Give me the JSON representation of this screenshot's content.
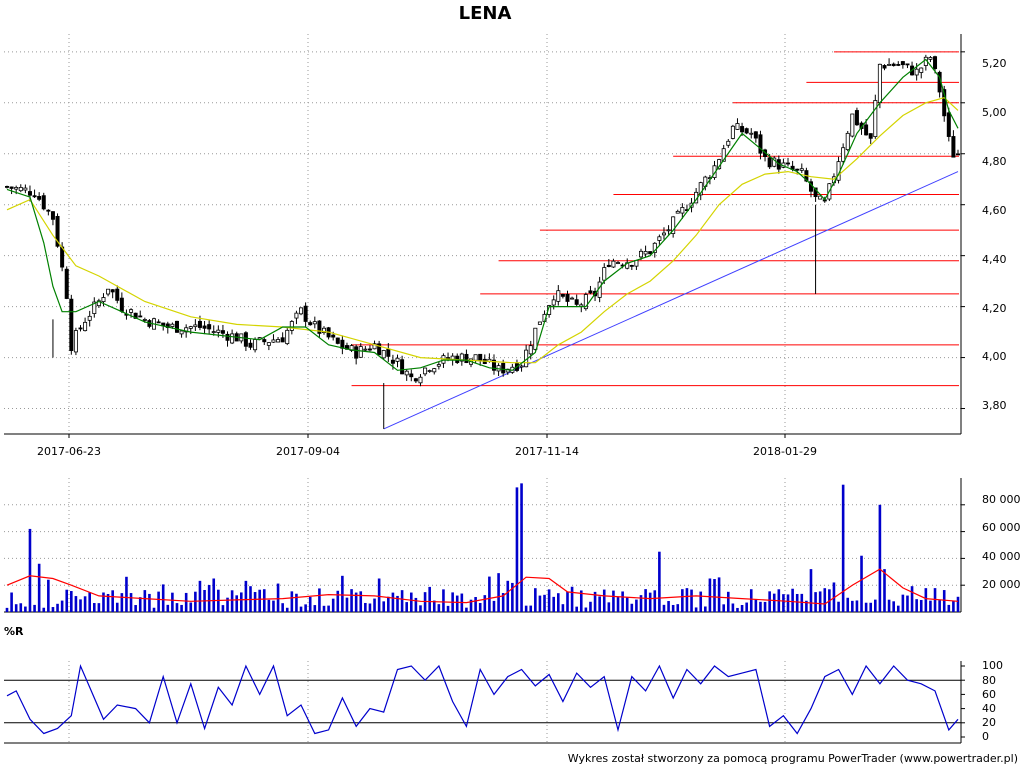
{
  "chart_data": [
    {
      "type": "candlestick",
      "title": "LENA",
      "x_tick_labels": [
        "2017-06-23",
        "2017-09-04",
        "2017-11-14",
        "2018-01-29"
      ],
      "y_ticks": [
        "3,80",
        "4,00",
        "4,20",
        "4,40",
        "4,60",
        "4,80",
        "5,00",
        "5,20"
      ],
      "ylim": [
        3.7,
        5.27
      ],
      "grid": true,
      "price_path": [
        [
          0,
          4.67
        ],
        [
          6,
          4.65
        ],
        [
          10,
          4.55
        ],
        [
          13,
          4.25
        ],
        [
          14,
          4.05
        ],
        [
          17,
          4.15
        ],
        [
          20,
          4.22
        ],
        [
          22,
          4.28
        ],
        [
          25,
          4.2
        ],
        [
          30,
          4.15
        ],
        [
          35,
          4.12
        ],
        [
          42,
          4.12
        ],
        [
          50,
          4.08
        ],
        [
          53,
          4.05
        ],
        [
          60,
          4.08
        ],
        [
          64,
          4.18
        ],
        [
          67,
          4.12
        ],
        [
          72,
          4.05
        ],
        [
          76,
          4.02
        ],
        [
          80,
          4.05
        ],
        [
          85,
          3.98
        ],
        [
          88,
          3.92
        ],
        [
          92,
          3.97
        ],
        [
          97,
          4.0
        ],
        [
          102,
          4.0
        ],
        [
          107,
          3.95
        ],
        [
          112,
          3.98
        ],
        [
          116,
          4.15
        ],
        [
          119,
          4.25
        ],
        [
          124,
          4.2
        ],
        [
          128,
          4.25
        ],
        [
          131,
          4.38
        ],
        [
          136,
          4.38
        ],
        [
          140,
          4.42
        ],
        [
          146,
          4.55
        ],
        [
          150,
          4.65
        ],
        [
          154,
          4.75
        ],
        [
          158,
          4.9
        ],
        [
          162,
          4.88
        ],
        [
          165,
          4.78
        ],
        [
          169,
          4.75
        ],
        [
          173,
          4.72
        ],
        [
          176,
          4.62
        ],
        [
          178,
          4.6
        ],
        [
          181,
          4.78
        ],
        [
          184,
          4.95
        ],
        [
          188,
          4.85
        ],
        [
          190,
          5.15
        ],
        [
          194,
          5.15
        ],
        [
          198,
          5.12
        ],
        [
          201,
          5.18
        ],
        [
          203,
          5.05
        ],
        [
          205,
          4.85
        ],
        [
          206,
          4.8
        ]
      ],
      "green_ma": [
        [
          0,
          4.66
        ],
        [
          5,
          4.63
        ],
        [
          8,
          4.45
        ],
        [
          10,
          4.28
        ],
        [
          12,
          4.18
        ],
        [
          15,
          4.18
        ],
        [
          20,
          4.22
        ],
        [
          25,
          4.18
        ],
        [
          30,
          4.14
        ],
        [
          40,
          4.1
        ],
        [
          50,
          4.08
        ],
        [
          55,
          4.07
        ],
        [
          60,
          4.12
        ],
        [
          65,
          4.12
        ],
        [
          70,
          4.05
        ],
        [
          75,
          4.03
        ],
        [
          80,
          4.02
        ],
        [
          85,
          3.95
        ],
        [
          90,
          3.96
        ],
        [
          95,
          3.99
        ],
        [
          100,
          3.99
        ],
        [
          105,
          3.96
        ],
        [
          110,
          3.95
        ],
        [
          115,
          4.02
        ],
        [
          118,
          4.2
        ],
        [
          122,
          4.2
        ],
        [
          126,
          4.2
        ],
        [
          130,
          4.3
        ],
        [
          135,
          4.37
        ],
        [
          140,
          4.4
        ],
        [
          145,
          4.5
        ],
        [
          150,
          4.62
        ],
        [
          155,
          4.75
        ],
        [
          160,
          4.88
        ],
        [
          164,
          4.82
        ],
        [
          168,
          4.76
        ],
        [
          172,
          4.73
        ],
        [
          175,
          4.68
        ],
        [
          178,
          4.62
        ],
        [
          181,
          4.72
        ],
        [
          185,
          4.88
        ],
        [
          190,
          5.0
        ],
        [
          195,
          5.1
        ],
        [
          200,
          5.17
        ],
        [
          203,
          5.1
        ],
        [
          205,
          4.97
        ],
        [
          207,
          4.9
        ]
      ],
      "yellow_ma": [
        [
          0,
          4.58
        ],
        [
          5,
          4.62
        ],
        [
          10,
          4.48
        ],
        [
          15,
          4.36
        ],
        [
          20,
          4.32
        ],
        [
          30,
          4.22
        ],
        [
          40,
          4.16
        ],
        [
          50,
          4.13
        ],
        [
          60,
          4.12
        ],
        [
          70,
          4.1
        ],
        [
          80,
          4.05
        ],
        [
          90,
          4.0
        ],
        [
          100,
          3.99
        ],
        [
          110,
          3.98
        ],
        [
          115,
          3.98
        ],
        [
          120,
          4.05
        ],
        [
          125,
          4.1
        ],
        [
          130,
          4.18
        ],
        [
          135,
          4.25
        ],
        [
          140,
          4.3
        ],
        [
          145,
          4.38
        ],
        [
          150,
          4.48
        ],
        [
          155,
          4.6
        ],
        [
          160,
          4.68
        ],
        [
          165,
          4.72
        ],
        [
          170,
          4.73
        ],
        [
          175,
          4.71
        ],
        [
          180,
          4.7
        ],
        [
          185,
          4.78
        ],
        [
          190,
          4.87
        ],
        [
          195,
          4.95
        ],
        [
          200,
          5.0
        ],
        [
          204,
          5.02
        ],
        [
          207,
          4.97
        ]
      ],
      "trendline": [
        [
          82,
          3.72
        ],
        [
          207,
          4.73
        ]
      ],
      "support_resistance": [
        {
          "level": 3.89,
          "from": 75
        },
        {
          "level": 4.05,
          "from": 75
        },
        {
          "level": 4.25,
          "from": 103
        },
        {
          "level": 4.38,
          "from": 107
        },
        {
          "level": 4.5,
          "from": 116
        },
        {
          "level": 4.64,
          "from": 132
        },
        {
          "level": 4.79,
          "from": 145
        },
        {
          "level": 5.0,
          "from": 158
        },
        {
          "level": 5.08,
          "from": 174
        },
        {
          "level": 5.2,
          "from": 180
        }
      ]
    },
    {
      "type": "bar",
      "y_ticks": [
        "20 000",
        "40 000",
        "60 000",
        "80 000"
      ],
      "ylim": [
        0,
        100000
      ],
      "volume_spikes": [
        {
          "i": 5,
          "v": 62000
        },
        {
          "i": 7,
          "v": 36000
        },
        {
          "i": 45,
          "v": 25000
        },
        {
          "i": 73,
          "v": 27000
        },
        {
          "i": 81,
          "v": 25000
        },
        {
          "i": 107,
          "v": 29000
        },
        {
          "i": 111,
          "v": 93000
        },
        {
          "i": 112,
          "v": 96000
        },
        {
          "i": 142,
          "v": 45000
        },
        {
          "i": 153,
          "v": 25000
        },
        {
          "i": 175,
          "v": 32000
        },
        {
          "i": 182,
          "v": 95000
        },
        {
          "i": 186,
          "v": 42000
        },
        {
          "i": 190,
          "v": 80000
        },
        {
          "i": 191,
          "v": 32000
        }
      ],
      "red_ma": [
        [
          0,
          20000
        ],
        [
          5,
          27000
        ],
        [
          10,
          25000
        ],
        [
          14,
          20000
        ],
        [
          20,
          12000
        ],
        [
          30,
          10000
        ],
        [
          40,
          8000
        ],
        [
          50,
          9000
        ],
        [
          60,
          10000
        ],
        [
          70,
          13000
        ],
        [
          80,
          12000
        ],
        [
          90,
          8000
        ],
        [
          100,
          7000
        ],
        [
          108,
          12000
        ],
        [
          113,
          26000
        ],
        [
          118,
          25000
        ],
        [
          122,
          15000
        ],
        [
          130,
          12000
        ],
        [
          140,
          10000
        ],
        [
          150,
          12000
        ],
        [
          160,
          10000
        ],
        [
          170,
          8000
        ],
        [
          178,
          6000
        ],
        [
          184,
          20000
        ],
        [
          190,
          32000
        ],
        [
          195,
          18000
        ],
        [
          200,
          10000
        ],
        [
          207,
          8000
        ]
      ]
    },
    {
      "type": "line",
      "label": "%R",
      "y_ticks": [
        "0",
        "20",
        "40",
        "60",
        "80",
        "100"
      ],
      "ylim": [
        0,
        100
      ],
      "hlines": [
        20,
        80
      ],
      "williams_path": [
        [
          0,
          58
        ],
        [
          2,
          65
        ],
        [
          5,
          25
        ],
        [
          8,
          5
        ],
        [
          11,
          12
        ],
        [
          14,
          30
        ],
        [
          16,
          100
        ],
        [
          18,
          70
        ],
        [
          21,
          25
        ],
        [
          24,
          45
        ],
        [
          28,
          40
        ],
        [
          31,
          20
        ],
        [
          34,
          85
        ],
        [
          37,
          20
        ],
        [
          40,
          75
        ],
        [
          43,
          12
        ],
        [
          46,
          70
        ],
        [
          49,
          45
        ],
        [
          52,
          100
        ],
        [
          55,
          60
        ],
        [
          58,
          100
        ],
        [
          61,
          30
        ],
        [
          64,
          45
        ],
        [
          67,
          5
        ],
        [
          70,
          10
        ],
        [
          73,
          55
        ],
        [
          76,
          15
        ],
        [
          79,
          40
        ],
        [
          82,
          35
        ],
        [
          85,
          95
        ],
        [
          88,
          100
        ],
        [
          91,
          80
        ],
        [
          94,
          100
        ],
        [
          97,
          50
        ],
        [
          100,
          15
        ],
        [
          103,
          95
        ],
        [
          106,
          60
        ],
        [
          109,
          85
        ],
        [
          112,
          95
        ],
        [
          115,
          72
        ],
        [
          118,
          88
        ],
        [
          121,
          50
        ],
        [
          124,
          90
        ],
        [
          127,
          70
        ],
        [
          130,
          85
        ],
        [
          133,
          10
        ],
        [
          136,
          85
        ],
        [
          139,
          65
        ],
        [
          142,
          100
        ],
        [
          145,
          55
        ],
        [
          148,
          95
        ],
        [
          151,
          75
        ],
        [
          154,
          100
        ],
        [
          157,
          85
        ],
        [
          160,
          90
        ],
        [
          163,
          95
        ],
        [
          166,
          15
        ],
        [
          169,
          30
        ],
        [
          172,
          5
        ],
        [
          175,
          40
        ],
        [
          178,
          85
        ],
        [
          181,
          95
        ],
        [
          184,
          60
        ],
        [
          187,
          100
        ],
        [
          190,
          75
        ],
        [
          193,
          100
        ],
        [
          196,
          80
        ],
        [
          199,
          75
        ],
        [
          202,
          65
        ],
        [
          205,
          10
        ],
        [
          207,
          25
        ]
      ]
    }
  ],
  "footer": "Wykres został stworzony za pomocą programu PowerTrader (www.powertrader.pl)"
}
